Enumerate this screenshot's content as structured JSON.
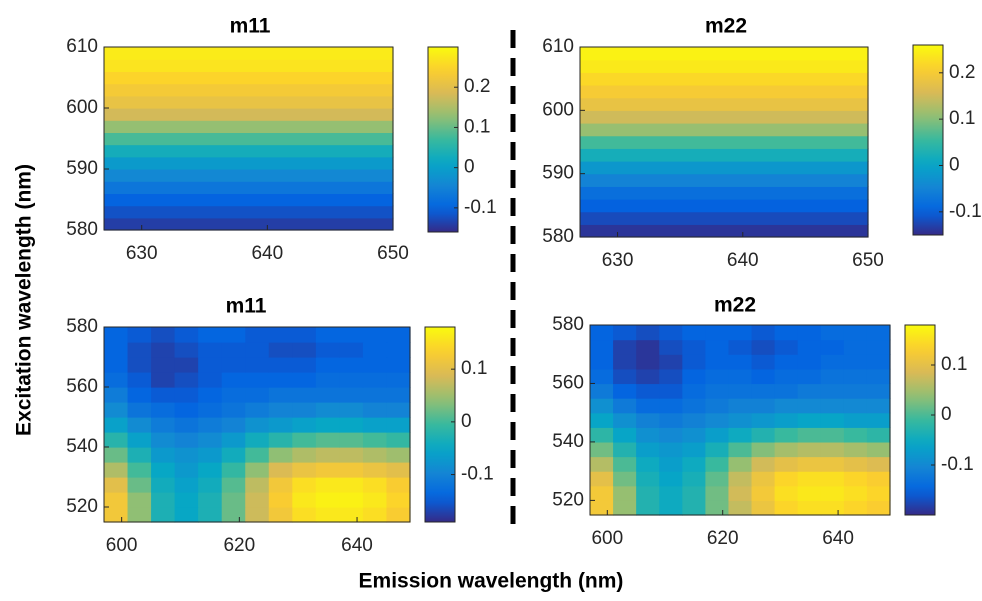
{
  "xlabel": "Emission wavelength (nm)",
  "ylabel": "Excitation wavelength (nm)",
  "chart_data": [
    {
      "type": "heatmap",
      "title": "m11",
      "colormap": "parula",
      "x_edges": [
        627,
        650
      ],
      "y_edges": [
        580,
        582,
        584,
        586,
        588,
        590,
        592,
        594,
        596,
        598,
        600,
        602,
        604,
        606,
        608,
        610
      ],
      "z": [
        [
          -0.14
        ],
        [
          -0.12
        ],
        [
          -0.1
        ],
        [
          -0.07
        ],
        [
          -0.04
        ],
        [
          -0.01
        ],
        [
          0.03
        ],
        [
          0.08
        ],
        [
          0.13
        ],
        [
          0.18
        ],
        [
          0.21
        ],
        [
          0.23
        ],
        [
          0.25
        ],
        [
          0.27
        ],
        [
          0.28
        ]
      ],
      "xlim": [
        627,
        650
      ],
      "ylim": [
        580,
        610
      ],
      "xticks": [
        630,
        640,
        650
      ],
      "yticks": [
        580,
        590,
        600,
        610
      ],
      "clim": [
        -0.16,
        0.3
      ],
      "cticks": [
        -0.1,
        0,
        0.1,
        0.2
      ]
    },
    {
      "type": "heatmap",
      "title": "m22",
      "colormap": "parula",
      "x_edges": [
        627,
        650
      ],
      "y_edges": [
        580,
        582,
        584,
        586,
        588,
        590,
        592,
        594,
        596,
        598,
        600,
        602,
        604,
        606,
        608,
        610
      ],
      "z": [
        [
          -0.14
        ],
        [
          -0.12
        ],
        [
          -0.1
        ],
        [
          -0.08
        ],
        [
          -0.05
        ],
        [
          -0.02
        ],
        [
          0.02
        ],
        [
          0.06
        ],
        [
          0.11
        ],
        [
          0.15
        ],
        [
          0.18
        ],
        [
          0.2
        ],
        [
          0.22
        ],
        [
          0.24
        ],
        [
          0.25
        ]
      ],
      "xlim": [
        627,
        650
      ],
      "ylim": [
        580,
        610
      ],
      "xticks": [
        630,
        640,
        650
      ],
      "yticks": [
        580,
        590,
        600,
        610
      ],
      "clim": [
        -0.15,
        0.26
      ],
      "cticks": [
        -0.1,
        0,
        0.1,
        0.2
      ]
    },
    {
      "type": "heatmap",
      "title": "m11",
      "colormap": "parula",
      "x_edges": [
        597,
        601,
        605,
        609,
        613,
        617,
        621,
        625,
        629,
        633,
        637,
        641,
        645,
        649
      ],
      "y_edges": [
        515,
        520,
        525,
        530,
        535,
        540,
        545,
        550,
        555,
        560,
        565,
        570,
        575,
        580
      ],
      "z": [
        [
          0.12,
          0.04,
          -0.03,
          -0.05,
          -0.03,
          0.02,
          0.08,
          0.12,
          0.15,
          0.16,
          0.16,
          0.15,
          0.13
        ],
        [
          0.12,
          0.04,
          -0.03,
          -0.05,
          -0.03,
          0.02,
          0.08,
          0.13,
          0.16,
          0.17,
          0.17,
          0.16,
          0.14
        ],
        [
          0.1,
          0.02,
          -0.04,
          -0.06,
          -0.04,
          0.01,
          0.07,
          0.12,
          0.15,
          0.16,
          0.16,
          0.15,
          0.13
        ],
        [
          0.06,
          0,
          -0.05,
          -0.07,
          -0.05,
          -0.01,
          0.04,
          0.09,
          0.11,
          0.12,
          0.12,
          0.11,
          0.1
        ],
        [
          0.02,
          -0.03,
          -0.07,
          -0.08,
          -0.07,
          -0.04,
          0,
          0.04,
          0.06,
          0.07,
          0.07,
          0.06,
          0.05
        ],
        [
          -0.02,
          -0.06,
          -0.09,
          -0.1,
          -0.09,
          -0.07,
          -0.04,
          -0.02,
          0,
          0.01,
          0.01,
          0,
          -0.01
        ],
        [
          -0.06,
          -0.09,
          -0.11,
          -0.12,
          -0.11,
          -0.1,
          -0.08,
          -0.07,
          -0.06,
          -0.05,
          -0.05,
          -0.06,
          -0.06
        ],
        [
          -0.09,
          -0.12,
          -0.13,
          -0.14,
          -0.13,
          -0.12,
          -0.11,
          -0.1,
          -0.1,
          -0.09,
          -0.09,
          -0.1,
          -0.1
        ],
        [
          -0.11,
          -0.14,
          -0.15,
          -0.15,
          -0.14,
          -0.13,
          -0.13,
          -0.12,
          -0.12,
          -0.12,
          -0.12,
          -0.12,
          -0.12
        ],
        [
          -0.13,
          -0.15,
          -0.17,
          -0.16,
          -0.15,
          -0.14,
          -0.14,
          -0.14,
          -0.14,
          -0.13,
          -0.13,
          -0.13,
          -0.13
        ],
        [
          -0.14,
          -0.16,
          -0.17,
          -0.17,
          -0.15,
          -0.15,
          -0.15,
          -0.15,
          -0.15,
          -0.14,
          -0.14,
          -0.14,
          -0.14
        ],
        [
          -0.14,
          -0.16,
          -0.17,
          -0.16,
          -0.15,
          -0.15,
          -0.15,
          -0.16,
          -0.16,
          -0.15,
          -0.15,
          -0.14,
          -0.14
        ],
        [
          -0.14,
          -0.15,
          -0.16,
          -0.15,
          -0.14,
          -0.14,
          -0.15,
          -0.15,
          -0.15,
          -0.14,
          -0.14,
          -0.14,
          -0.14
        ]
      ],
      "xlim": [
        597,
        649
      ],
      "ylim": [
        515,
        580
      ],
      "xticks": [
        600,
        620,
        640
      ],
      "yticks": [
        520,
        540,
        560,
        580
      ],
      "clim": [
        -0.19,
        0.18
      ],
      "cticks": [
        -0.1,
        0,
        0.1
      ]
    },
    {
      "type": "heatmap",
      "title": "m22",
      "colormap": "parula",
      "x_edges": [
        597,
        601,
        605,
        609,
        613,
        617,
        621,
        625,
        629,
        633,
        637,
        641,
        645,
        649
      ],
      "y_edges": [
        515,
        520,
        525,
        530,
        535,
        540,
        545,
        550,
        555,
        560,
        565,
        570,
        575,
        580
      ],
      "z": [
        [
          0.12,
          0.04,
          -0.03,
          -0.05,
          -0.03,
          0.02,
          0.07,
          0.11,
          0.14,
          0.15,
          0.15,
          0.14,
          0.13
        ],
        [
          0.12,
          0.04,
          -0.03,
          -0.05,
          -0.03,
          0.02,
          0.08,
          0.12,
          0.15,
          0.16,
          0.16,
          0.15,
          0.14
        ],
        [
          0.1,
          0.02,
          -0.04,
          -0.06,
          -0.04,
          0.01,
          0.07,
          0.11,
          0.14,
          0.15,
          0.15,
          0.14,
          0.13
        ],
        [
          0.06,
          0,
          -0.05,
          -0.07,
          -0.05,
          -0.01,
          0.04,
          0.08,
          0.1,
          0.11,
          0.11,
          0.1,
          0.09
        ],
        [
          0.02,
          -0.03,
          -0.07,
          -0.08,
          -0.07,
          -0.04,
          0,
          0.03,
          0.05,
          0.06,
          0.06,
          0.05,
          0.04
        ],
        [
          -0.02,
          -0.06,
          -0.09,
          -0.1,
          -0.09,
          -0.07,
          -0.05,
          -0.03,
          -0.01,
          0,
          0,
          -0.01,
          -0.02
        ],
        [
          -0.06,
          -0.09,
          -0.11,
          -0.12,
          -0.11,
          -0.1,
          -0.09,
          -0.08,
          -0.07,
          -0.06,
          -0.06,
          -0.07,
          -0.07
        ],
        [
          -0.09,
          -0.12,
          -0.14,
          -0.14,
          -0.13,
          -0.12,
          -0.11,
          -0.11,
          -0.1,
          -0.1,
          -0.1,
          -0.1,
          -0.1
        ],
        [
          -0.12,
          -0.15,
          -0.16,
          -0.16,
          -0.14,
          -0.13,
          -0.13,
          -0.13,
          -0.13,
          -0.12,
          -0.12,
          -0.12,
          -0.12
        ],
        [
          -0.14,
          -0.17,
          -0.18,
          -0.17,
          -0.15,
          -0.14,
          -0.14,
          -0.15,
          -0.14,
          -0.14,
          -0.13,
          -0.13,
          -0.13
        ],
        [
          -0.15,
          -0.18,
          -0.19,
          -0.18,
          -0.16,
          -0.15,
          -0.15,
          -0.16,
          -0.15,
          -0.15,
          -0.14,
          -0.14,
          -0.14
        ],
        [
          -0.15,
          -0.18,
          -0.19,
          -0.17,
          -0.16,
          -0.15,
          -0.16,
          -0.17,
          -0.16,
          -0.15,
          -0.15,
          -0.14,
          -0.14
        ],
        [
          -0.15,
          -0.16,
          -0.17,
          -0.16,
          -0.15,
          -0.15,
          -0.15,
          -0.16,
          -0.15,
          -0.15,
          -0.14,
          -0.14,
          -0.14
        ]
      ],
      "xlim": [
        597,
        649
      ],
      "ylim": [
        515,
        580
      ],
      "xticks": [
        600,
        620,
        640
      ],
      "yticks": [
        520,
        540,
        560,
        580
      ],
      "clim": [
        -0.2,
        0.18
      ],
      "cticks": [
        -0.1,
        0,
        0.1
      ]
    }
  ]
}
